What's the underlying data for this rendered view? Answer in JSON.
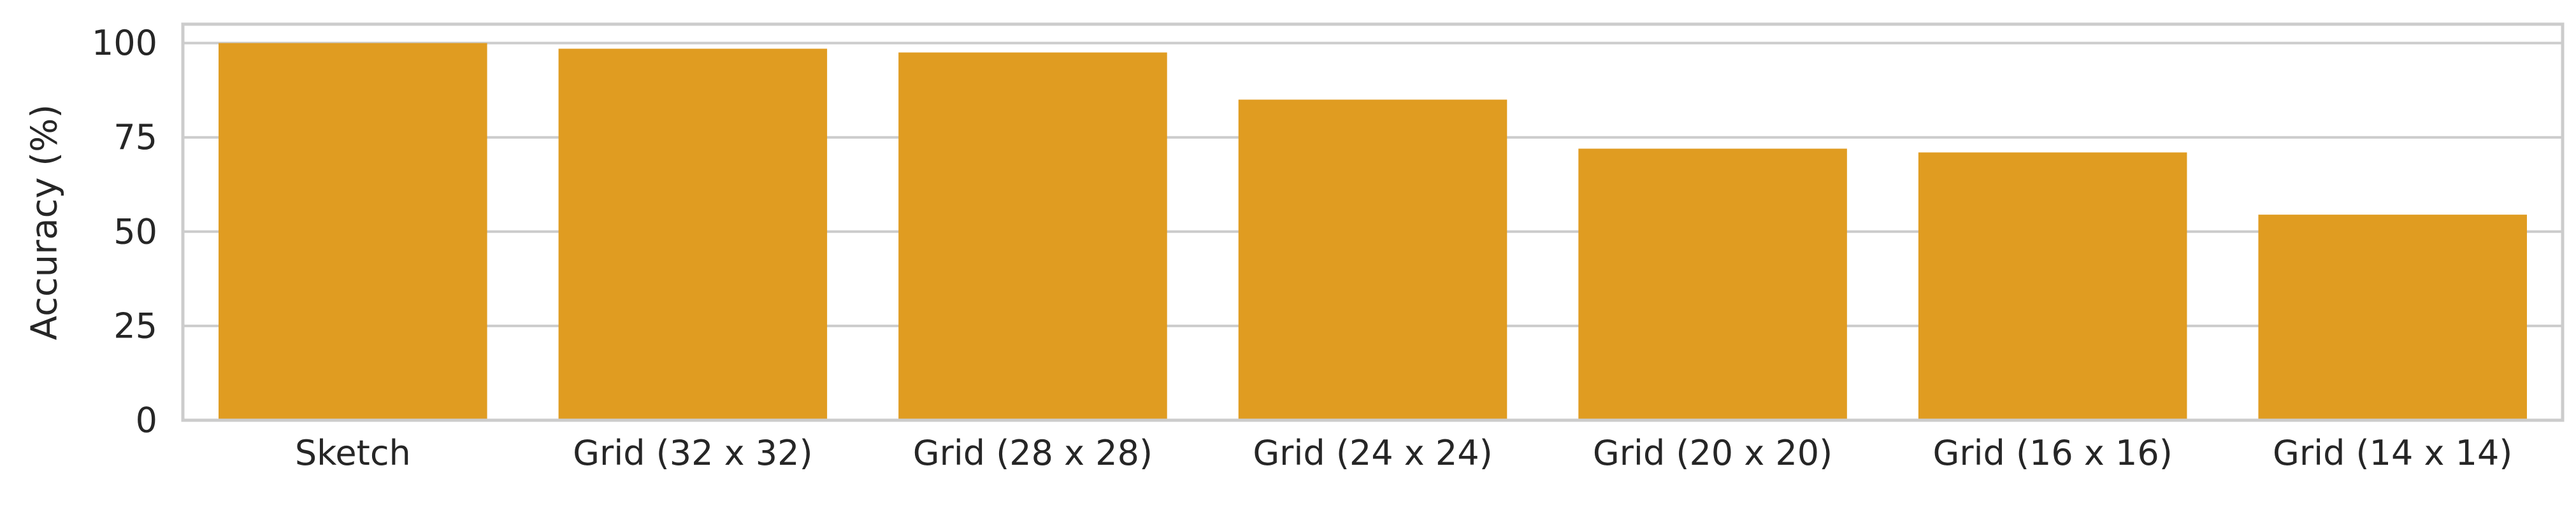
{
  "chart_data": {
    "type": "bar",
    "categories": [
      "Sketch",
      "Grid (32 x 32)",
      "Grid (28 x 28)",
      "Grid (24 x 24)",
      "Grid (20 x 20)",
      "Grid (16 x 16)",
      "Grid (14 x 14)"
    ],
    "values": [
      100,
      98.5,
      97.5,
      85,
      72,
      71,
      54.5
    ],
    "title": "",
    "xlabel": "",
    "ylabel": "Accuracy (%)",
    "ylim": [
      0,
      105
    ],
    "yticks": [
      0,
      25,
      50,
      75,
      100
    ],
    "grid": true,
    "bar_color": "#E09C21",
    "grid_color": "#cccccc"
  }
}
